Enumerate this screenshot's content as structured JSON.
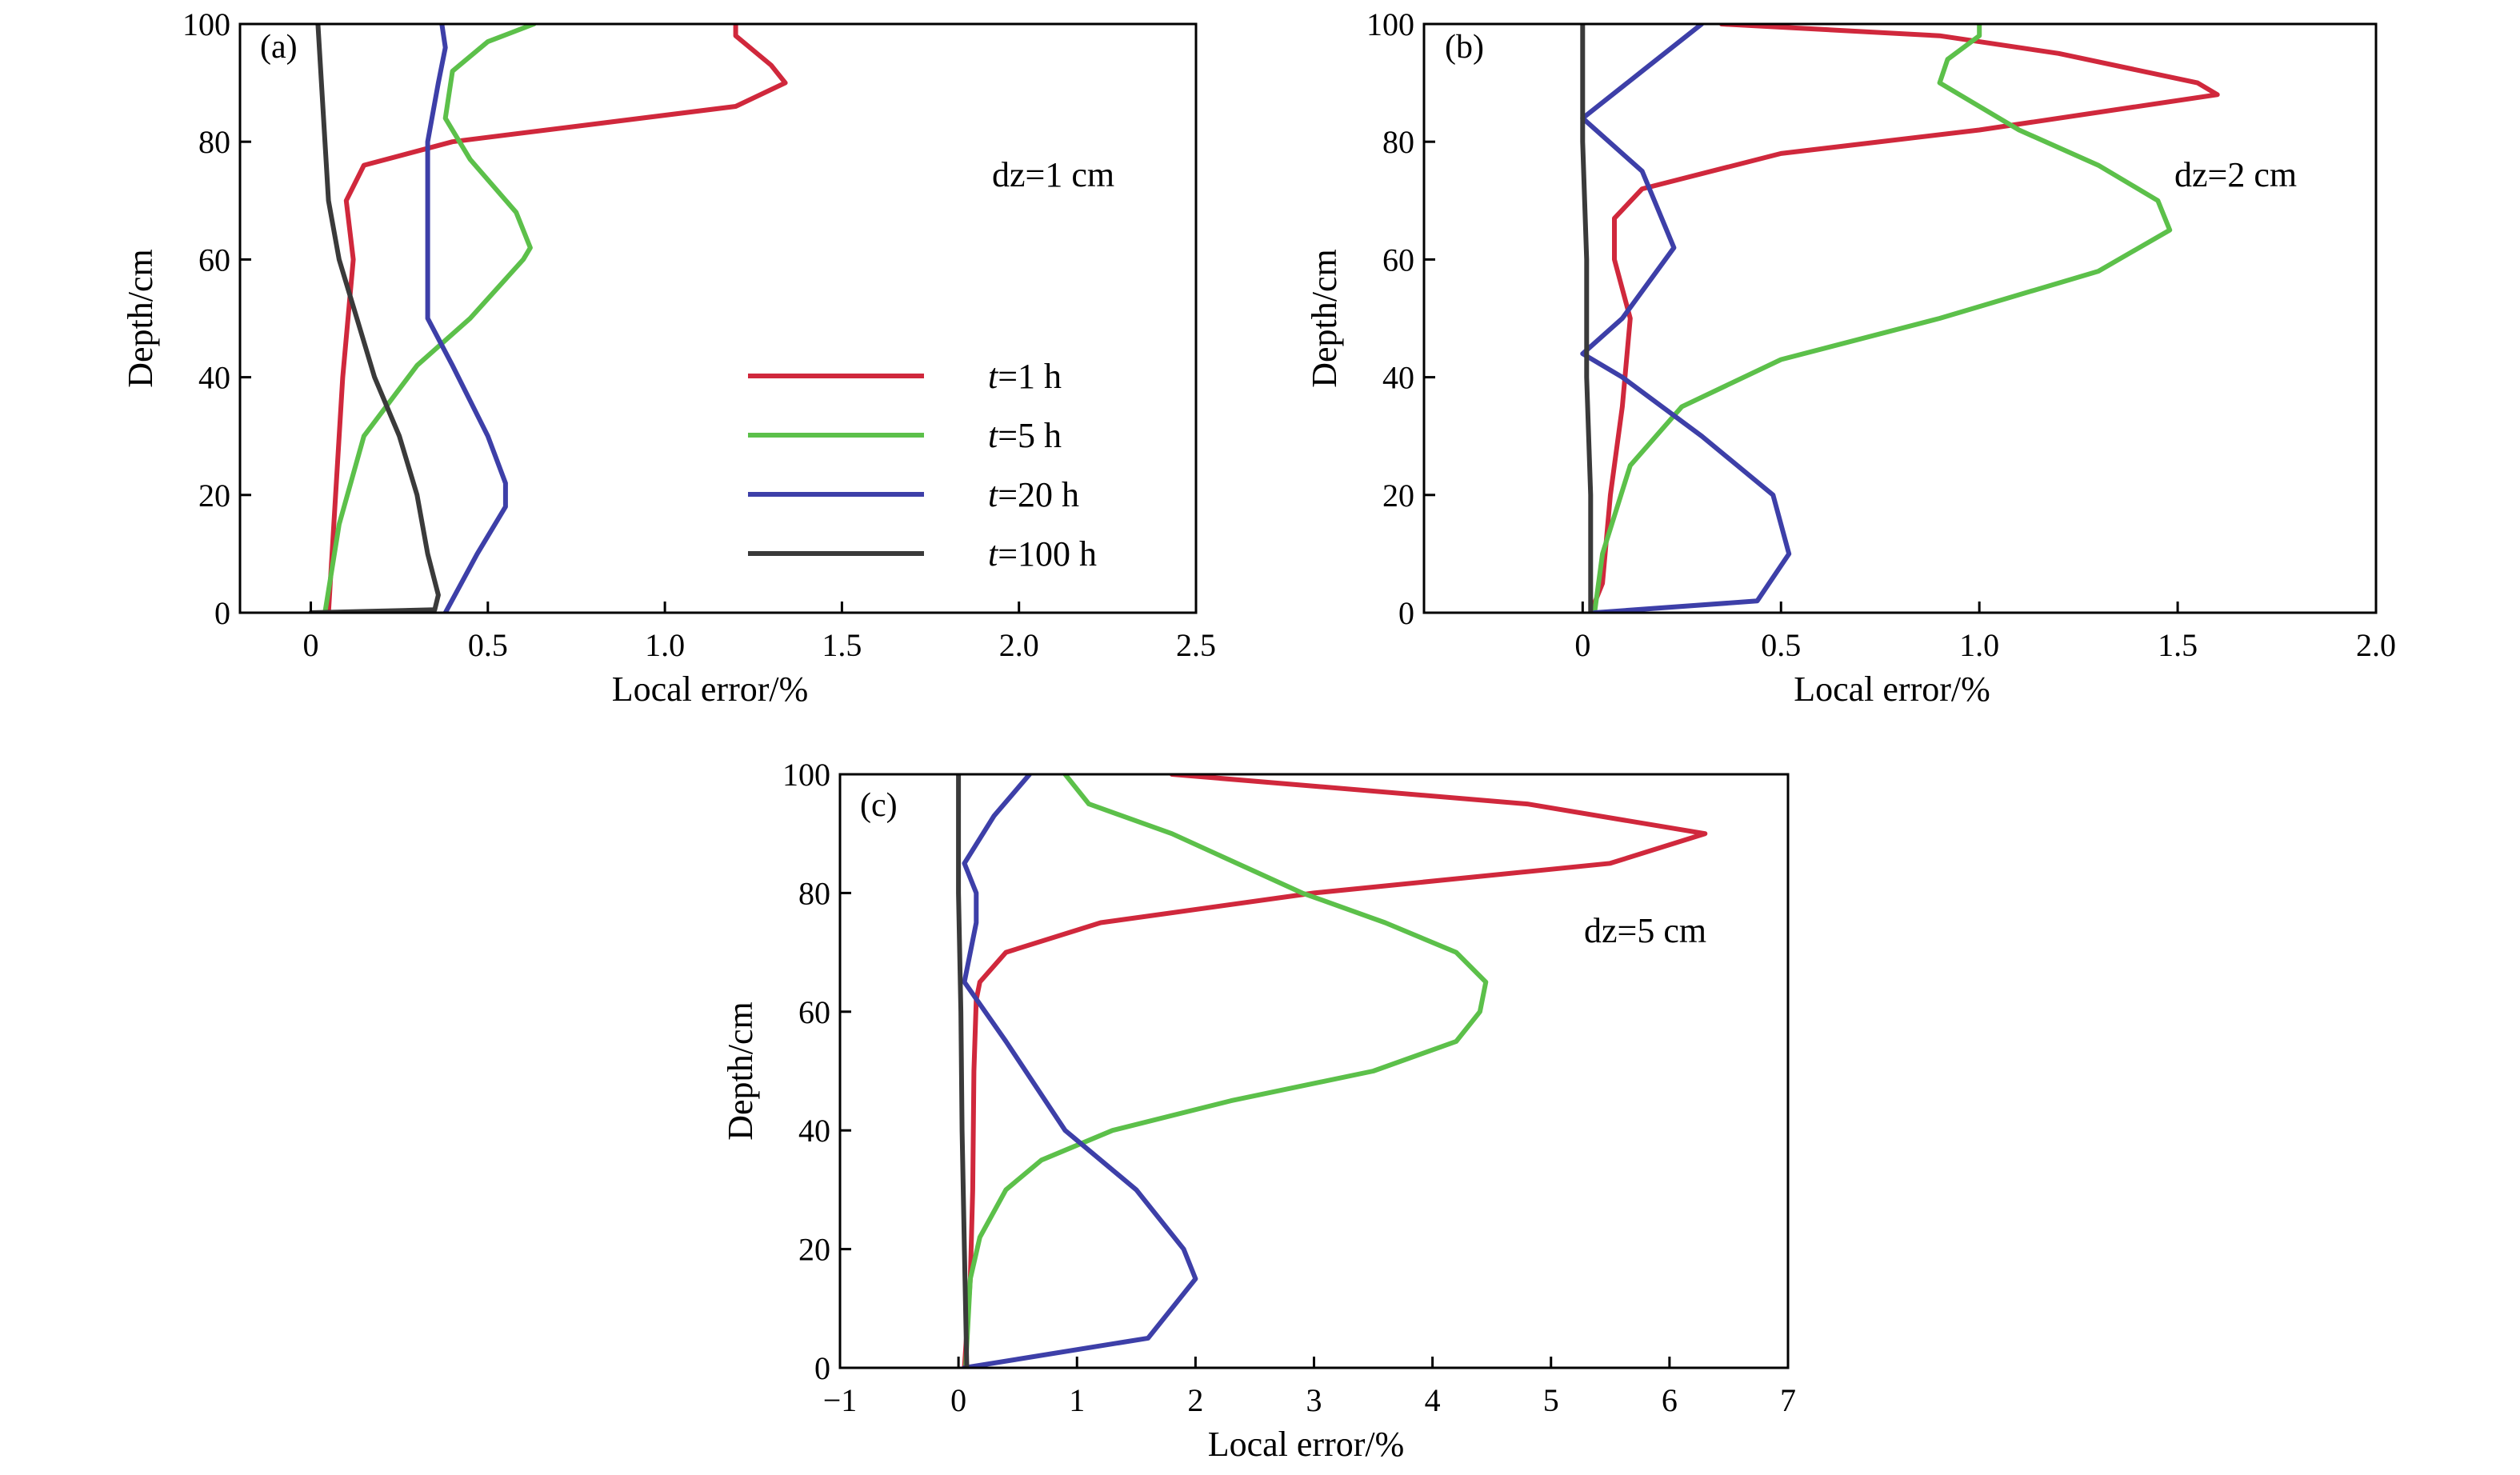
{
  "chart_data": [
    {
      "type": "line",
      "panel_label": "(a)",
      "annotation": "dz=1 cm",
      "xlabel": "Local error/%",
      "ylabel": "Depth/cm",
      "xlim": [
        -0.2,
        2.5
      ],
      "ylim": [
        0,
        100
      ],
      "xticks": [
        0,
        0.5,
        1.0,
        1.5,
        2.0,
        2.5
      ],
      "xtick_labels": [
        "0",
        "0.5",
        "1.0",
        "1.5",
        "2.0",
        "2.5"
      ],
      "yticks": [
        0,
        20,
        40,
        60,
        80,
        100
      ],
      "ytick_labels": [
        "0",
        "20",
        "40",
        "60",
        "80",
        "100"
      ],
      "legend": {
        "position": "center-right",
        "entries": [
          {
            "t": "t",
            "rest": "=1 h",
            "color": "#d0283c"
          },
          {
            "t": "t",
            "rest": "=5 h",
            "color": "#5cc04a"
          },
          {
            "t": "t",
            "rest": "=20 h",
            "color": "#3d3fa8"
          },
          {
            "t": "t",
            "rest": "=100 h",
            "color": "#3a3a3a"
          }
        ]
      },
      "series": [
        {
          "color": "#d0283c",
          "points": [
            [
              0.05,
              0
            ],
            [
              0.07,
              20
            ],
            [
              0.09,
              40
            ],
            [
              0.12,
              60
            ],
            [
              0.1,
              70
            ],
            [
              0.15,
              76
            ],
            [
              0.4,
              80
            ],
            [
              0.8,
              83
            ],
            [
              1.2,
              86
            ],
            [
              1.34,
              90
            ],
            [
              1.3,
              93
            ],
            [
              1.2,
              98
            ],
            [
              1.2,
              100
            ]
          ]
        },
        {
          "color": "#5cc04a",
          "points": [
            [
              0.04,
              0
            ],
            [
              0.08,
              15
            ],
            [
              0.15,
              30
            ],
            [
              0.3,
              42
            ],
            [
              0.45,
              50
            ],
            [
              0.6,
              60
            ],
            [
              0.62,
              62
            ],
            [
              0.58,
              68
            ],
            [
              0.45,
              77
            ],
            [
              0.38,
              84
            ],
            [
              0.4,
              92
            ],
            [
              0.5,
              97
            ],
            [
              0.63,
              100
            ]
          ]
        },
        {
          "color": "#3d3fa8",
          "points": [
            [
              0.38,
              0
            ],
            [
              0.47,
              10
            ],
            [
              0.55,
              18
            ],
            [
              0.55,
              22
            ],
            [
              0.5,
              30
            ],
            [
              0.4,
              42
            ],
            [
              0.33,
              50
            ],
            [
              0.33,
              60
            ],
            [
              0.33,
              70
            ],
            [
              0.33,
              80
            ],
            [
              0.36,
              90
            ],
            [
              0.38,
              96
            ],
            [
              0.37,
              100
            ]
          ]
        },
        {
          "color": "#3a3a3a",
          "points": [
            [
              0,
              0
            ],
            [
              0.35,
              0.5
            ],
            [
              0.36,
              3
            ],
            [
              0.33,
              10
            ],
            [
              0.3,
              20
            ],
            [
              0.25,
              30
            ],
            [
              0.18,
              40
            ],
            [
              0.13,
              50
            ],
            [
              0.08,
              60
            ],
            [
              0.05,
              70
            ],
            [
              0.04,
              80
            ],
            [
              0.03,
              90
            ],
            [
              0.02,
              100
            ]
          ]
        }
      ]
    },
    {
      "type": "line",
      "panel_label": "(b)",
      "annotation": "dz=2 cm",
      "xlabel": "Local error/%",
      "ylabel": "Depth/cm",
      "xlim": [
        -0.4,
        2.0
      ],
      "ylim": [
        0,
        100
      ],
      "xticks": [
        0,
        0.5,
        1.0,
        1.5,
        2.0
      ],
      "xtick_labels": [
        "0",
        "0.5",
        "1.0",
        "1.5",
        "2.0"
      ],
      "yticks": [
        0,
        20,
        40,
        60,
        80,
        100
      ],
      "ytick_labels": [
        "0",
        "20",
        "40",
        "60",
        "80",
        "100"
      ],
      "series": [
        {
          "color": "#d0283c",
          "points": [
            [
              0.02,
              0
            ],
            [
              0.05,
              5
            ],
            [
              0.07,
              20
            ],
            [
              0.1,
              35
            ],
            [
              0.12,
              50
            ],
            [
              0.08,
              60
            ],
            [
              0.08,
              67
            ],
            [
              0.15,
              72
            ],
            [
              0.5,
              78
            ],
            [
              1.0,
              82
            ],
            [
              1.6,
              88
            ],
            [
              1.55,
              90
            ],
            [
              1.2,
              95
            ],
            [
              0.9,
              98
            ],
            [
              0.35,
              100
            ]
          ]
        },
        {
          "color": "#5cc04a",
          "points": [
            [
              0.03,
              0
            ],
            [
              0.05,
              10
            ],
            [
              0.12,
              25
            ],
            [
              0.25,
              35
            ],
            [
              0.5,
              43
            ],
            [
              0.9,
              50
            ],
            [
              1.3,
              58
            ],
            [
              1.48,
              65
            ],
            [
              1.45,
              70
            ],
            [
              1.3,
              76
            ],
            [
              1.1,
              82
            ],
            [
              0.9,
              90
            ],
            [
              0.92,
              94
            ],
            [
              1.0,
              98
            ],
            [
              1.0,
              100
            ]
          ]
        },
        {
          "color": "#3d3fa8",
          "points": [
            [
              0.03,
              0
            ],
            [
              0.44,
              2
            ],
            [
              0.52,
              10
            ],
            [
              0.48,
              20
            ],
            [
              0.3,
              30
            ],
            [
              0.1,
              40
            ],
            [
              0.0,
              44
            ],
            [
              0.1,
              50
            ],
            [
              0.23,
              62
            ],
            [
              0.15,
              75
            ],
            [
              0.0,
              84
            ],
            [
              0.15,
              92
            ],
            [
              0.3,
              100
            ]
          ]
        },
        {
          "color": "#3a3a3a",
          "points": [
            [
              0.02,
              0
            ],
            [
              0.02,
              20
            ],
            [
              0.01,
              40
            ],
            [
              0.01,
              60
            ],
            [
              0.0,
              80
            ],
            [
              0.0,
              100
            ]
          ]
        }
      ]
    },
    {
      "type": "line",
      "panel_label": "(c)",
      "annotation": "dz=5 cm",
      "xlabel": "Local error/%",
      "ylabel": "Depth/cm",
      "xlim": [
        -1,
        7
      ],
      "ylim": [
        0,
        100
      ],
      "xticks": [
        -1,
        0,
        1,
        2,
        3,
        4,
        5,
        6,
        7
      ],
      "xtick_labels": [
        "−1",
        "0",
        "1",
        "2",
        "3",
        "4",
        "5",
        "6",
        "7"
      ],
      "yticks": [
        0,
        20,
        40,
        60,
        80,
        100
      ],
      "ytick_labels": [
        "0",
        "20",
        "40",
        "60",
        "80",
        "100"
      ],
      "series": [
        {
          "color": "#d0283c",
          "points": [
            [
              0.05,
              0
            ],
            [
              0.1,
              15
            ],
            [
              0.12,
              30
            ],
            [
              0.13,
              50
            ],
            [
              0.15,
              62
            ],
            [
              0.18,
              65
            ],
            [
              0.4,
              70
            ],
            [
              1.2,
              75
            ],
            [
              3.0,
              80
            ],
            [
              5.5,
              85
            ],
            [
              6.3,
              90
            ],
            [
              4.8,
              95
            ],
            [
              1.8,
              100
            ]
          ]
        },
        {
          "color": "#5cc04a",
          "points": [
            [
              0.06,
              0
            ],
            [
              0.1,
              15
            ],
            [
              0.18,
              22
            ],
            [
              0.4,
              30
            ],
            [
              0.7,
              35
            ],
            [
              1.3,
              40
            ],
            [
              2.3,
              45
            ],
            [
              3.5,
              50
            ],
            [
              4.2,
              55
            ],
            [
              4.4,
              60
            ],
            [
              4.45,
              65
            ],
            [
              4.2,
              70
            ],
            [
              3.6,
              75
            ],
            [
              2.9,
              80
            ],
            [
              1.8,
              90
            ],
            [
              1.1,
              95
            ],
            [
              0.9,
              100
            ]
          ]
        },
        {
          "color": "#3d3fa8",
          "points": [
            [
              0.05,
              0
            ],
            [
              1.6,
              5
            ],
            [
              2.0,
              15
            ],
            [
              1.9,
              20
            ],
            [
              1.5,
              30
            ],
            [
              0.9,
              40
            ],
            [
              0.4,
              55
            ],
            [
              0.05,
              65
            ],
            [
              0.15,
              75
            ],
            [
              0.15,
              80
            ],
            [
              0.05,
              85
            ],
            [
              0.3,
              93
            ],
            [
              0.6,
              100
            ]
          ]
        },
        {
          "color": "#3a3a3a",
          "points": [
            [
              0.07,
              0
            ],
            [
              0.05,
              20
            ],
            [
              0.03,
              40
            ],
            [
              0.02,
              60
            ],
            [
              0.0,
              80
            ],
            [
              0.0,
              100
            ]
          ]
        }
      ]
    }
  ]
}
